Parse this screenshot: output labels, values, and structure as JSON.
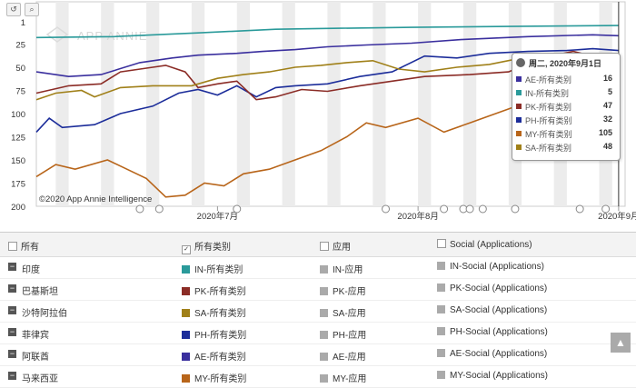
{
  "toolbar": {
    "reset_icon": "↺",
    "zoom_icon": "⌕"
  },
  "chart": {
    "watermark": "APP ANNIE",
    "copyright": "©2020 App Annie Intelligence",
    "y_ticks": [
      "1",
      "25",
      "50",
      "75",
      "100",
      "125",
      "150",
      "175",
      "200"
    ],
    "x_ticks": [
      "2020年7月",
      "2020年8月",
      "2020年9月"
    ]
  },
  "tooltip": {
    "date": "周二, 2020年9月1日",
    "rows": [
      {
        "label": "AE-所有类别",
        "value": "16",
        "color": "#3a2f9e"
      },
      {
        "label": "IN-所有类别",
        "value": "5",
        "color": "#2a9a9a"
      },
      {
        "label": "PK-所有类别",
        "value": "47",
        "color": "#8b2c26"
      },
      {
        "label": "PH-所有类别",
        "value": "32",
        "color": "#1c2d9a"
      },
      {
        "label": "MY-所有类别",
        "value": "105",
        "color": "#b8651a"
      },
      {
        "label": "SA-所有类别",
        "value": "48",
        "color": "#a08019"
      }
    ]
  },
  "table": {
    "headers": {
      "country": "所有",
      "all_categories": "所有类别",
      "apps": "应用",
      "social": "Social (Applications)"
    },
    "rows": [
      {
        "country": "印度",
        "c1": "IN-所有类别",
        "c2": "IN-应用",
        "c3": "IN-Social (Applications)",
        "color": "#2a9a9a"
      },
      {
        "country": "巴基斯坦",
        "c1": "PK-所有类别",
        "c2": "PK-应用",
        "c3": "PK-Social (Applications)",
        "color": "#8b2c26"
      },
      {
        "country": "沙特阿拉伯",
        "c1": "SA-所有类别",
        "c2": "SA-应用",
        "c3": "SA-Social (Applications)",
        "color": "#a08019"
      },
      {
        "country": "菲律宾",
        "c1": "PH-所有类别",
        "c2": "PH-应用",
        "c3": "PH-Social (Applications)",
        "color": "#1c2d9a"
      },
      {
        "country": "阿联酋",
        "c1": "AE-所有类别",
        "c2": "AE-应用",
        "c3": "AE-Social (Applications)",
        "color": "#3a2f9e"
      },
      {
        "country": "马来西亚",
        "c1": "MY-所有类别",
        "c2": "MY-应用",
        "c3": "MY-Social (Applications)",
        "color": "#b8651a"
      }
    ],
    "inactive_color": "#aaaaaa"
  },
  "chart_data": {
    "type": "line",
    "y_inverted": true,
    "ylim": [
      1,
      200
    ],
    "x_axis": "date",
    "x_range": [
      "2020-06-03",
      "2020-09-02"
    ],
    "series": [
      {
        "name": "IN-所有类别",
        "color": "#2a9a9a",
        "points": [
          [
            "2020-06-03",
            18
          ],
          [
            "2020-06-15",
            17
          ],
          [
            "2020-06-28",
            13
          ],
          [
            "2020-07-10",
            9
          ],
          [
            "2020-07-20",
            8
          ],
          [
            "2020-07-31",
            7
          ],
          [
            "2020-08-15",
            6
          ],
          [
            "2020-09-01",
            5
          ]
        ]
      },
      {
        "name": "AE-所有类别",
        "color": "#3a2f9e",
        "points": [
          [
            "2020-06-03",
            55
          ],
          [
            "2020-06-08",
            60
          ],
          [
            "2020-06-13",
            58
          ],
          [
            "2020-06-19",
            45
          ],
          [
            "2020-06-24",
            40
          ],
          [
            "2020-06-28",
            37
          ],
          [
            "2020-07-04",
            35
          ],
          [
            "2020-07-08",
            33
          ],
          [
            "2020-07-13",
            31
          ],
          [
            "2020-07-18",
            28
          ],
          [
            "2020-07-24",
            26
          ],
          [
            "2020-07-31",
            24
          ],
          [
            "2020-08-08",
            20
          ],
          [
            "2020-08-18",
            17
          ],
          [
            "2020-08-28",
            15
          ],
          [
            "2020-09-01",
            16
          ]
        ]
      },
      {
        "name": "PH-所有类别",
        "color": "#1c2d9a",
        "points": [
          [
            "2020-06-03",
            120
          ],
          [
            "2020-06-05",
            105
          ],
          [
            "2020-06-07",
            115
          ],
          [
            "2020-06-12",
            112
          ],
          [
            "2020-06-16",
            100
          ],
          [
            "2020-06-21",
            92
          ],
          [
            "2020-06-25",
            78
          ],
          [
            "2020-06-28",
            74
          ],
          [
            "2020-07-01",
            80
          ],
          [
            "2020-07-04",
            70
          ],
          [
            "2020-07-07",
            82
          ],
          [
            "2020-07-10",
            72
          ],
          [
            "2020-07-13",
            70
          ],
          [
            "2020-07-18",
            68
          ],
          [
            "2020-07-23",
            60
          ],
          [
            "2020-07-28",
            55
          ],
          [
            "2020-08-02",
            38
          ],
          [
            "2020-08-07",
            40
          ],
          [
            "2020-08-12",
            35
          ],
          [
            "2020-08-18",
            33
          ],
          [
            "2020-08-24",
            32
          ],
          [
            "2020-08-28",
            30
          ],
          [
            "2020-09-01",
            32
          ]
        ]
      },
      {
        "name": "PK-所有类别",
        "color": "#8b2c26",
        "points": [
          [
            "2020-06-03",
            78
          ],
          [
            "2020-06-08",
            70
          ],
          [
            "2020-06-13",
            68
          ],
          [
            "2020-06-16",
            55
          ],
          [
            "2020-06-21",
            50
          ],
          [
            "2020-06-23",
            48
          ],
          [
            "2020-06-26",
            55
          ],
          [
            "2020-06-28",
            72
          ],
          [
            "2020-07-01",
            68
          ],
          [
            "2020-07-04",
            65
          ],
          [
            "2020-07-07",
            85
          ],
          [
            "2020-07-10",
            82
          ],
          [
            "2020-07-14",
            74
          ],
          [
            "2020-07-18",
            76
          ],
          [
            "2020-07-23",
            70
          ],
          [
            "2020-07-28",
            65
          ],
          [
            "2020-08-02",
            60
          ],
          [
            "2020-08-09",
            58
          ],
          [
            "2020-08-15",
            55
          ],
          [
            "2020-08-20",
            40
          ],
          [
            "2020-08-25",
            33
          ],
          [
            "2020-08-28",
            38
          ],
          [
            "2020-09-01",
            47
          ]
        ]
      },
      {
        "name": "SA-所有类别",
        "color": "#a08019",
        "points": [
          [
            "2020-06-03",
            85
          ],
          [
            "2020-06-06",
            78
          ],
          [
            "2020-06-10",
            75
          ],
          [
            "2020-06-12",
            82
          ],
          [
            "2020-06-16",
            72
          ],
          [
            "2020-06-21",
            70
          ],
          [
            "2020-06-27",
            70
          ],
          [
            "2020-07-01",
            62
          ],
          [
            "2020-07-05",
            58
          ],
          [
            "2020-07-09",
            55
          ],
          [
            "2020-07-13",
            50
          ],
          [
            "2020-07-17",
            48
          ],
          [
            "2020-07-21",
            45
          ],
          [
            "2020-07-25",
            43
          ],
          [
            "2020-07-29",
            52
          ],
          [
            "2020-08-02",
            55
          ],
          [
            "2020-08-07",
            50
          ],
          [
            "2020-08-12",
            47
          ],
          [
            "2020-08-17",
            40
          ],
          [
            "2020-08-22",
            42
          ],
          [
            "2020-08-27",
            44
          ],
          [
            "2020-09-01",
            48
          ]
        ]
      },
      {
        "name": "MY-所有类别",
        "color": "#b8651a",
        "points": [
          [
            "2020-06-03",
            168
          ],
          [
            "2020-06-06",
            155
          ],
          [
            "2020-06-09",
            160
          ],
          [
            "2020-06-14",
            150
          ],
          [
            "2020-06-17",
            160
          ],
          [
            "2020-06-20",
            170
          ],
          [
            "2020-06-23",
            190
          ],
          [
            "2020-06-26",
            188
          ],
          [
            "2020-06-29",
            175
          ],
          [
            "2020-07-02",
            178
          ],
          [
            "2020-07-05",
            165
          ],
          [
            "2020-07-09",
            160
          ],
          [
            "2020-07-13",
            150
          ],
          [
            "2020-07-17",
            140
          ],
          [
            "2020-07-21",
            125
          ],
          [
            "2020-07-24",
            110
          ],
          [
            "2020-07-27",
            115
          ],
          [
            "2020-08-01",
            105
          ],
          [
            "2020-08-05",
            120
          ],
          [
            "2020-08-09",
            110
          ],
          [
            "2020-08-13",
            100
          ],
          [
            "2020-08-17",
            90
          ],
          [
            "2020-08-21",
            80
          ],
          [
            "2020-08-25",
            72
          ],
          [
            "2020-08-29",
            80
          ],
          [
            "2020-09-01",
            105
          ]
        ]
      }
    ]
  }
}
